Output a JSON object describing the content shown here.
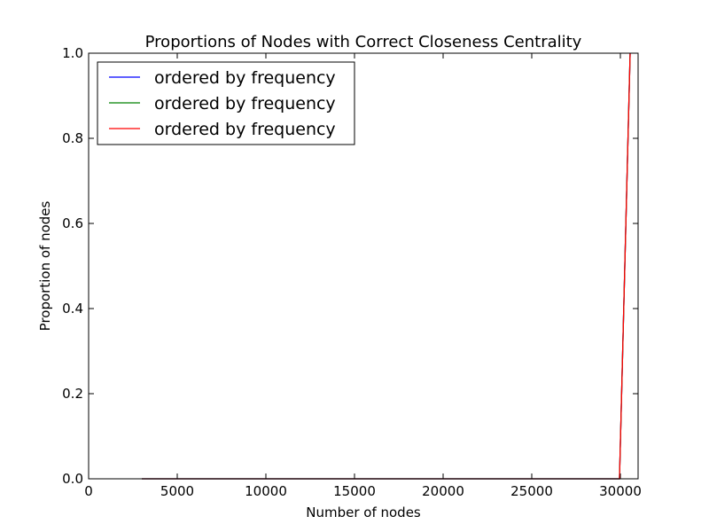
{
  "chart_data": {
    "type": "line",
    "title": "Proportions of Nodes with Correct Closeness Centrality",
    "xlabel": "Number of nodes",
    "ylabel": "Proportion of nodes",
    "xlim": [
      0,
      31000
    ],
    "ylim": [
      0.0,
      1.0
    ],
    "xticks": [
      0,
      5000,
      10000,
      15000,
      20000,
      25000,
      30000
    ],
    "xtick_labels": [
      "0",
      "5000",
      "10000",
      "15000",
      "20000",
      "25000",
      "30000"
    ],
    "yticks": [
      0.0,
      0.2,
      0.4,
      0.6,
      0.8,
      1.0
    ],
    "ytick_labels": [
      "0.0",
      "0.2",
      "0.4",
      "0.6",
      "0.8",
      "1.0"
    ],
    "grid": false,
    "legend_position": "top-left",
    "series": [
      {
        "name": "ordered by frequency",
        "color": "#0000ff",
        "x": [
          3000,
          10000,
          20000,
          29950,
          30100,
          30250,
          30400,
          30550
        ],
        "y": [
          0.0,
          0.0,
          0.0,
          0.0,
          0.25,
          0.5,
          0.75,
          1.0
        ]
      },
      {
        "name": "ordered by frequency",
        "color": "#008000",
        "x": [
          3000,
          10000,
          20000,
          29950,
          30100,
          30250,
          30400,
          30550
        ],
        "y": [
          0.0,
          0.0,
          0.0,
          0.0,
          0.25,
          0.5,
          0.75,
          1.0
        ]
      },
      {
        "name": "ordered by frequency",
        "color": "#ff0000",
        "x": [
          3000,
          10000,
          20000,
          29950,
          30100,
          30250,
          30400,
          30550
        ],
        "y": [
          0.0,
          0.0,
          0.0,
          0.0,
          0.25,
          0.5,
          0.75,
          1.0
        ]
      }
    ]
  }
}
